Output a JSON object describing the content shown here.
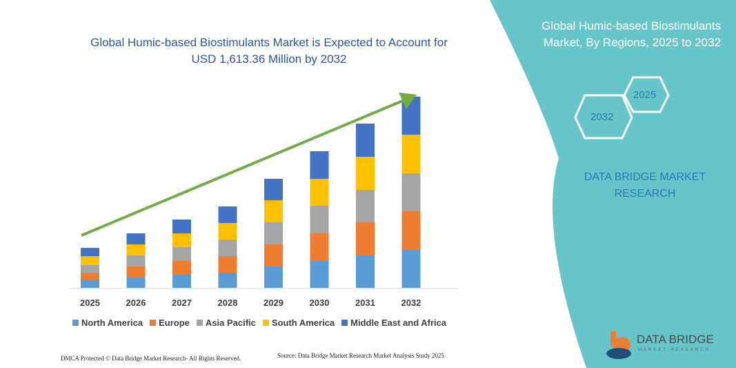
{
  "chart_data": {
    "type": "bar",
    "stacked": true,
    "title": "Global Humic-based Biostimulants Market is Expected to Account for USD 1,613.36 Million by 2032",
    "categories": [
      "2025",
      "2026",
      "2027",
      "2028",
      "2029",
      "2030",
      "2031",
      "2032"
    ],
    "series": [
      {
        "name": "North America",
        "color": "#5b9bd5",
        "values": [
          11,
          15,
          19,
          22,
          31,
          39,
          47,
          55
        ]
      },
      {
        "name": "Europe",
        "color": "#ed7d31",
        "values": [
          11,
          16,
          20,
          24,
          32,
          40,
          48,
          56
        ]
      },
      {
        "name": "Asia Pacific",
        "color": "#a5a5a5",
        "values": [
          11,
          16,
          20,
          24,
          32,
          40,
          47,
          55
        ]
      },
      {
        "name": "South America",
        "color": "#ffc000",
        "values": [
          13,
          16,
          20,
          24,
          32,
          39,
          48,
          56
        ]
      },
      {
        "name": "Middle East and Africa",
        "color": "#4472c4",
        "values": [
          12,
          16,
          20,
          24,
          31,
          40,
          48,
          55
        ]
      }
    ],
    "y_axis_shown": false,
    "grid": false,
    "legend_position": "bottom",
    "trend_arrow_color": "#70ad47"
  },
  "side_panel": {
    "title": "Global Humic-based Biostimulants Market, By Regions, 2025 to 2032",
    "hex_start": "2025",
    "hex_end": "2032",
    "brand": "DATA BRIDGE MARKET RESEARCH",
    "color": "#66c5c9"
  },
  "logo": {
    "name": "DATA BRIDGE",
    "tagline": "MARKET RESEARCH"
  },
  "footer": {
    "left": "DMCA Protected © Data Bridge Market Research-  All Rights Reserved.",
    "right": "Source: Data Bridge Market Research  Market Analysis Study 2025"
  }
}
